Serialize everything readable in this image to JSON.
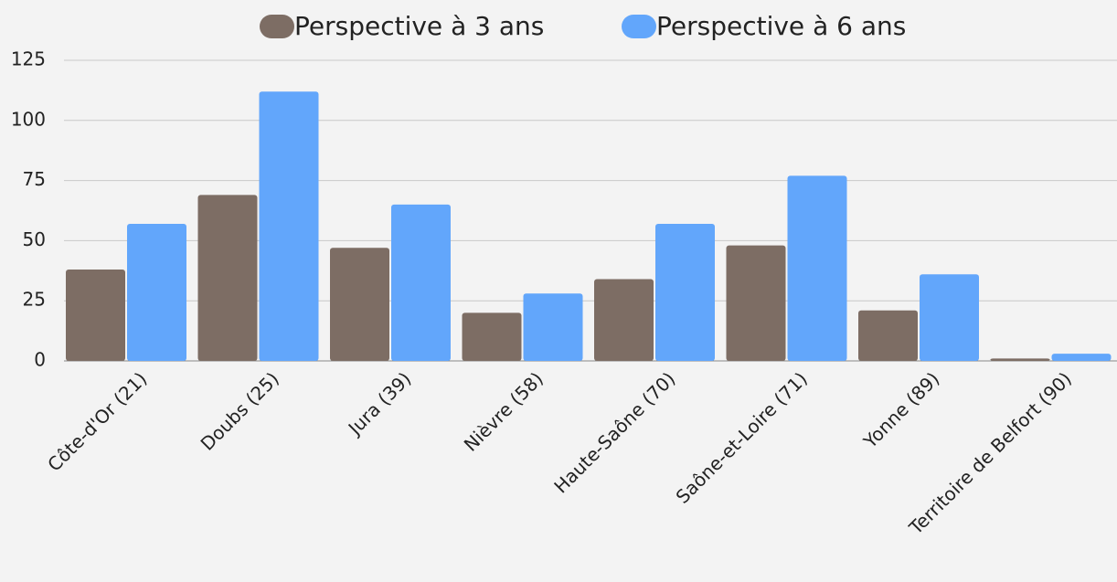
{
  "chart_data": {
    "type": "bar",
    "categories": [
      "Côte-d'Or (21)",
      "Doubs (25)",
      "Jura (39)",
      "Nièvre (58)",
      "Haute-Saône (70)",
      "Saône-et-Loire (71)",
      "Yonne (89)",
      "Territoire de Belfort (90)"
    ],
    "series": [
      {
        "name": "Perspective à 3 ans",
        "color": "#7d6d64",
        "values": [
          38,
          69,
          47,
          20,
          34,
          48,
          21,
          1
        ]
      },
      {
        "name": "Perspective à 6 ans",
        "color": "#62a6fb",
        "values": [
          57,
          112,
          65,
          28,
          57,
          77,
          36,
          3
        ]
      }
    ],
    "ylim": [
      0,
      125
    ],
    "yticks": [
      0,
      25,
      50,
      75,
      100,
      125
    ],
    "grid": true,
    "legend": "top"
  }
}
